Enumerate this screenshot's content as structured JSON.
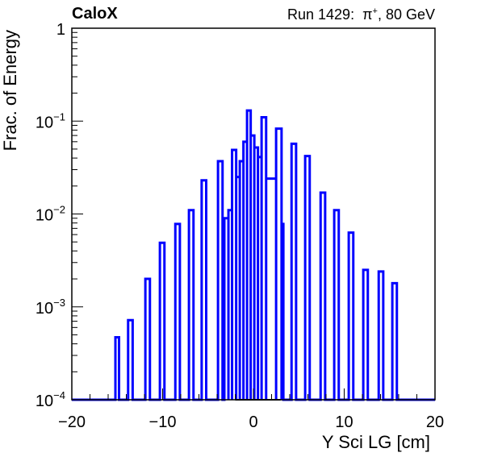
{
  "header": {
    "left_title": "CaloX",
    "run_label": "Run 1429:",
    "particle": "π",
    "particle_charge": "+",
    "energy": ", 80 GeV"
  },
  "chart_data": {
    "type": "histogram",
    "xlabel": "Y Sci LG [cm]",
    "ylabel": "Frac. of Energy",
    "xlim": [
      -20,
      20
    ],
    "ylim": [
      0.0001,
      1
    ],
    "yscale": "log",
    "x_ticks": [
      "−20",
      "−10",
      "0",
      "10",
      "20"
    ],
    "y_ticks": [
      {
        "base": "10",
        "exp": "−4",
        "value": 0.0001
      },
      {
        "base": "10",
        "exp": "−3",
        "value": 0.001
      },
      {
        "base": "10",
        "exp": "−2",
        "value": 0.01
      },
      {
        "base": "10",
        "exp": "−1",
        "value": 0.1
      },
      {
        "base": "1",
        "exp": "",
        "value": 1
      }
    ],
    "line_color": "#0000ff",
    "grid": false,
    "bins": [
      {
        "x0": -15.2,
        "x1": -14.8,
        "y": 0.00047
      },
      {
        "x0": -13.8,
        "x1": -13.3,
        "y": 0.00072
      },
      {
        "x0": -11.9,
        "x1": -11.4,
        "y": 0.002
      },
      {
        "x0": -10.3,
        "x1": -9.8,
        "y": 0.0049
      },
      {
        "x0": -8.6,
        "x1": -8.1,
        "y": 0.0078
      },
      {
        "x0": -7.1,
        "x1": -6.6,
        "y": 0.011
      },
      {
        "x0": -5.7,
        "x1": -5.2,
        "y": 0.023
      },
      {
        "x0": -3.9,
        "x1": -3.4,
        "y": 0.037
      },
      {
        "x0": -3.2,
        "x1": -2.75,
        "y": 0.009
      },
      {
        "x0": -2.75,
        "x1": -2.35,
        "y": 0.011
      },
      {
        "x0": -2.35,
        "x1": -1.9,
        "y": 0.049
      },
      {
        "x0": -1.9,
        "x1": -1.5,
        "y": 0.025
      },
      {
        "x0": -1.5,
        "x1": -1.1,
        "y": 0.037
      },
      {
        "x0": -1.1,
        "x1": -0.7,
        "y": 0.06
      },
      {
        "x0": -0.7,
        "x1": -0.3,
        "y": 0.13
      },
      {
        "x0": -0.3,
        "x1": 0.1,
        "y": 0.07
      },
      {
        "x0": 0.1,
        "x1": 0.5,
        "y": 0.052
      },
      {
        "x0": 0.5,
        "x1": 0.9,
        "y": 0.041
      },
      {
        "x0": 0.9,
        "x1": 1.4,
        "y": 0.11
      },
      {
        "x0": 1.4,
        "x1": 2.5,
        "y": 0.024
      },
      {
        "x0": 2.5,
        "x1": 3.1,
        "y": 0.083
      },
      {
        "x0": 3.1,
        "x1": 3.3,
        "y": 0.0078
      },
      {
        "x0": 4.2,
        "x1": 4.7,
        "y": 0.057
      },
      {
        "x0": 5.7,
        "x1": 6.2,
        "y": 0.042
      },
      {
        "x0": 7.4,
        "x1": 7.9,
        "y": 0.017
      },
      {
        "x0": 8.9,
        "x1": 9.4,
        "y": 0.011
      },
      {
        "x0": 10.5,
        "x1": 11.0,
        "y": 0.0063
      },
      {
        "x0": 12.1,
        "x1": 12.6,
        "y": 0.0025
      },
      {
        "x0": 13.8,
        "x1": 14.3,
        "y": 0.0024
      },
      {
        "x0": 15.3,
        "x1": 15.8,
        "y": 0.0018
      }
    ]
  }
}
